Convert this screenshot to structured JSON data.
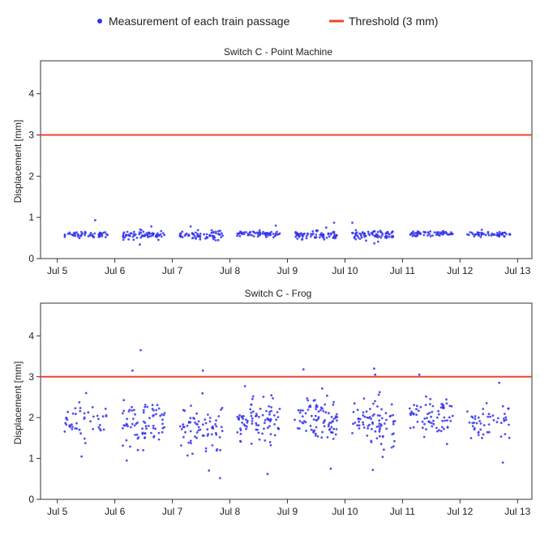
{
  "colors": {
    "points": "#3333ee",
    "threshold": "#ee4433",
    "axis": "#333333",
    "background": "#ffffff"
  },
  "legend": {
    "position": "top-center",
    "items": [
      {
        "label": "Measurement of each train passage",
        "marker": "dot",
        "color": "#3333ee"
      },
      {
        "label": "Threshold (3 mm)",
        "marker": "line",
        "color": "#ee4433"
      }
    ]
  },
  "chart_data": [
    {
      "type": "scatter",
      "title": "Switch C - Point Machine",
      "xlabel": "",
      "ylabel": "Displacement [mm]",
      "ylim": [
        0,
        4.8
      ],
      "yticks": [
        0,
        1,
        2,
        3,
        4
      ],
      "xlim": [
        "2021-07-04 17:00",
        "2021-07-13 06:00"
      ],
      "xticks": [
        "Jul 5",
        "Jul 6",
        "Jul 7",
        "Jul 8",
        "Jul 9",
        "Jul 10",
        "Jul 11",
        "Jul 12",
        "Jul 13"
      ],
      "grid": false,
      "threshold": 3,
      "clusters": [
        {
          "start": "Jul 5 03:00",
          "end": "Jul 5 21:00",
          "mean": 0.59,
          "spread": 0.07,
          "n": 55,
          "outliers": [
            0.93
          ]
        },
        {
          "start": "Jul 6 03:00",
          "end": "Jul 6 21:00",
          "mean": 0.57,
          "spread": 0.1,
          "n": 70,
          "outliers": [
            0.78,
            0.34
          ]
        },
        {
          "start": "Jul 7 03:00",
          "end": "Jul 7 21:00",
          "mean": 0.57,
          "spread": 0.1,
          "n": 65,
          "outliers": [
            0.78
          ]
        },
        {
          "start": "Jul 8 03:00",
          "end": "Jul 8 21:00",
          "mean": 0.6,
          "spread": 0.07,
          "n": 60,
          "outliers": [
            0.8
          ]
        },
        {
          "start": "Jul 9 03:00",
          "end": "Jul 9 21:00",
          "mean": 0.58,
          "spread": 0.09,
          "n": 70,
          "outliers": [
            0.87
          ]
        },
        {
          "start": "Jul 10 03:00",
          "end": "Jul 10 21:00",
          "mean": 0.57,
          "spread": 0.1,
          "n": 75,
          "outliers": [
            0.87,
            0.37
          ]
        },
        {
          "start": "Jul 11 03:00",
          "end": "Jul 11 21:00",
          "mean": 0.6,
          "spread": 0.06,
          "n": 60,
          "outliers": []
        },
        {
          "start": "Jul 12 03:00",
          "end": "Jul 12 21:00",
          "mean": 0.59,
          "spread": 0.06,
          "n": 55,
          "outliers": []
        }
      ]
    },
    {
      "type": "scatter",
      "title": "Switch C - Frog",
      "xlabel": "",
      "ylabel": "Displacement [mm]",
      "ylim": [
        0,
        4.8
      ],
      "yticks": [
        0,
        1,
        2,
        3,
        4
      ],
      "xlim": [
        "2021-07-04 17:00",
        "2021-07-13 06:00"
      ],
      "xticks": [
        "Jul 5",
        "Jul 6",
        "Jul 7",
        "Jul 8",
        "Jul 9",
        "Jul 10",
        "Jul 11",
        "Jul 12",
        "Jul 13"
      ],
      "grid": false,
      "threshold": 3,
      "clusters": [
        {
          "start": "Jul 5 03:00",
          "end": "Jul 5 21:00",
          "mean": 1.85,
          "spread": 0.45,
          "n": 45,
          "outliers": [
            2.6,
            1.05
          ]
        },
        {
          "start": "Jul 6 03:00",
          "end": "Jul 6 21:00",
          "mean": 1.9,
          "spread": 0.5,
          "n": 75,
          "outliers": [
            3.65,
            3.15,
            0.95
          ]
        },
        {
          "start": "Jul 7 03:00",
          "end": "Jul 7 21:00",
          "mean": 1.75,
          "spread": 0.55,
          "n": 70,
          "outliers": [
            3.15,
            0.52
          ]
        },
        {
          "start": "Jul 8 03:00",
          "end": "Jul 8 21:00",
          "mean": 1.9,
          "spread": 0.5,
          "n": 85,
          "outliers": [
            0.62
          ]
        },
        {
          "start": "Jul 9 03:00",
          "end": "Jul 9 21:00",
          "mean": 1.95,
          "spread": 0.5,
          "n": 85,
          "outliers": [
            3.18,
            0.75
          ]
        },
        {
          "start": "Jul 10 03:00",
          "end": "Jul 10 21:00",
          "mean": 1.9,
          "spread": 0.55,
          "n": 80,
          "outliers": [
            3.2,
            3.05,
            0.72
          ]
        },
        {
          "start": "Jul 11 03:00",
          "end": "Jul 11 21:00",
          "mean": 2.0,
          "spread": 0.45,
          "n": 70,
          "outliers": [
            3.05
          ]
        },
        {
          "start": "Jul 12 03:00",
          "end": "Jul 12 21:00",
          "mean": 1.95,
          "spread": 0.45,
          "n": 50,
          "outliers": [
            2.85,
            0.9
          ]
        }
      ]
    }
  ]
}
